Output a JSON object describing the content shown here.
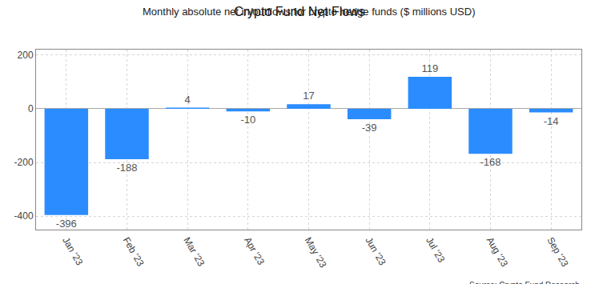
{
  "chart_data": {
    "type": "bar",
    "title": "Crypto Fund Net Flows",
    "subtitle": "Monthly absolute net in/outflows for crypto hedge funds ($ millions USD)",
    "source": "Source: Crypto Fund Research",
    "categories": [
      "Jan '23",
      "Feb '23",
      "Mar '23",
      "Apr '23",
      "May '23",
      "Jun '23",
      "Jul '23",
      "Aug '23",
      "Sep '23"
    ],
    "values": [
      -396,
      -188,
      4,
      -10,
      17,
      -39,
      119,
      -168,
      -14
    ],
    "color": "#2b8cff",
    "ylim": [
      -450,
      220
    ],
    "yticks": [
      -400,
      -200,
      0,
      200
    ],
    "grid": true,
    "data_labels": true
  }
}
